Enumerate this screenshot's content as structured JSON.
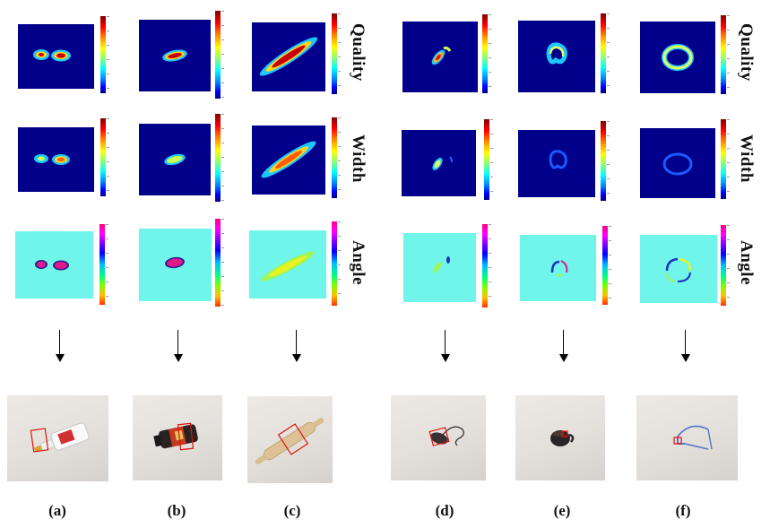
{
  "row_labels": {
    "left": [
      "Quality",
      "Width",
      "Angle"
    ],
    "right": [
      "Quality",
      "Width",
      "Angle"
    ]
  },
  "captions": [
    "(a)",
    "(b)",
    "(c)",
    "(d)",
    "(e)",
    "(f)"
  ],
  "objects": [
    {
      "panel": "(a)",
      "depicts": "white glue bottle"
    },
    {
      "panel": "(b)",
      "depicts": "dark bottle with label"
    },
    {
      "panel": "(c)",
      "depicts": "wooden rolling pin"
    },
    {
      "panel": "(d)",
      "depicts": "computer mouse with cable"
    },
    {
      "panel": "(e)",
      "depicts": "black mug"
    },
    {
      "panel": "(f)",
      "depicts": "blue eyeglasses"
    }
  ],
  "colors": {
    "heatmap_background": "#00008b",
    "angle_background": "#6ff5ea",
    "grasp_box": "#e01010"
  },
  "colormaps": {
    "quality": "jet",
    "width": "jet",
    "angle": "hsv"
  }
}
